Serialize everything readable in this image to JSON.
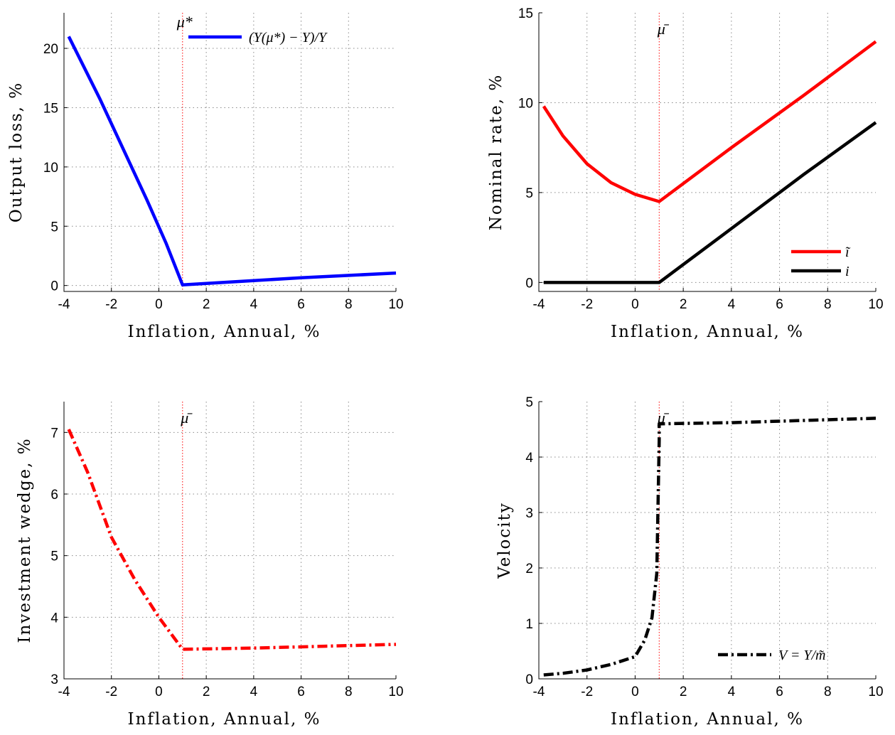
{
  "chart_data": [
    {
      "type": "line",
      "ylabel": "Output loss, %",
      "xlabel": "Inflation, Annual, %",
      "xlim": [
        -4,
        10
      ],
      "ylim": [
        -0.5,
        23
      ],
      "xticks": [
        -4,
        -2,
        0,
        2,
        4,
        6,
        8,
        10
      ],
      "yticks": [
        0,
        5,
        10,
        15,
        20
      ],
      "grid": true,
      "vline": {
        "x": 1,
        "label": "μ*",
        "color": "#ff0000"
      },
      "legend_position": "top-right",
      "series": [
        {
          "name": "(Y(μ*) − Y)/Y",
          "color": "#0000ff",
          "style": "solid",
          "x": [
            -3.8,
            -2.5,
            -1.5,
            -0.5,
            0.3,
            1.0,
            3.0,
            6.0,
            10.0
          ],
          "y": [
            21.0,
            15.8,
            11.5,
            7.2,
            3.6,
            0.05,
            0.3,
            0.65,
            1.05
          ]
        }
      ]
    },
    {
      "type": "line",
      "ylabel": "Nominal rate, %",
      "xlabel": "Inflation, Annual, %",
      "xlim": [
        -4,
        10
      ],
      "ylim": [
        -0.5,
        15
      ],
      "xticks": [
        -4,
        -2,
        0,
        2,
        4,
        6,
        8,
        10
      ],
      "yticks": [
        0,
        5,
        10,
        15
      ],
      "grid": true,
      "vline": {
        "x": 1,
        "label": "μ̄",
        "color": "#ff0000"
      },
      "legend_position": "bottom-right",
      "series": [
        {
          "name": "ĩ",
          "color": "#ff0000",
          "style": "solid",
          "x": [
            -3.8,
            -3.0,
            -2.0,
            -1.0,
            0.0,
            1.0,
            4.0,
            7.0,
            10.0
          ],
          "y": [
            9.8,
            8.15,
            6.6,
            5.55,
            4.9,
            4.5,
            7.5,
            10.4,
            13.4
          ]
        },
        {
          "name": "i",
          "color": "#000000",
          "style": "solid",
          "x": [
            -3.8,
            1.0,
            4.0,
            7.0,
            10.0
          ],
          "y": [
            0,
            0,
            3.0,
            6.0,
            8.9
          ]
        }
      ]
    },
    {
      "type": "line",
      "ylabel": "Investment wedge, %",
      "xlabel": "Inflation, Annual, %",
      "xlim": [
        -4,
        10
      ],
      "ylim": [
        3,
        7.5
      ],
      "xticks": [
        -4,
        -2,
        0,
        2,
        4,
        6,
        8,
        10
      ],
      "yticks": [
        3,
        4,
        5,
        6,
        7
      ],
      "grid": true,
      "vline": {
        "x": 1,
        "label": "μ̄",
        "color": "#ff0000"
      },
      "series": [
        {
          "name": "",
          "color": "#ff0000",
          "style": "dashdot",
          "x": [
            -3.8,
            -3.0,
            -2.0,
            -1.0,
            0.0,
            1.0,
            4.0,
            7.0,
            10.0
          ],
          "y": [
            7.05,
            6.35,
            5.3,
            4.6,
            4.0,
            3.48,
            3.5,
            3.53,
            3.56
          ]
        }
      ]
    },
    {
      "type": "line",
      "ylabel": "Velocity",
      "xlabel": "Inflation, Annual, %",
      "xlim": [
        -4,
        10
      ],
      "ylim": [
        0,
        5
      ],
      "xticks": [
        -4,
        -2,
        0,
        2,
        4,
        6,
        8,
        10
      ],
      "yticks": [
        0,
        1,
        2,
        3,
        4,
        5
      ],
      "grid": true,
      "vline": {
        "x": 1,
        "label": "μ̄",
        "color": "#ff0000"
      },
      "legend_position": "bottom-right",
      "series": [
        {
          "name": "V = Y/m̃",
          "color": "#000000",
          "style": "dashdot",
          "x": [
            -3.8,
            -3.0,
            -2.0,
            -1.0,
            0.0,
            0.4,
            0.7,
            0.9,
            1.0,
            1.0,
            4.0,
            7.0,
            10.0
          ],
          "y": [
            0.07,
            0.1,
            0.16,
            0.26,
            0.4,
            0.7,
            1.1,
            1.9,
            4.3,
            4.6,
            4.62,
            4.66,
            4.7
          ]
        }
      ]
    }
  ]
}
